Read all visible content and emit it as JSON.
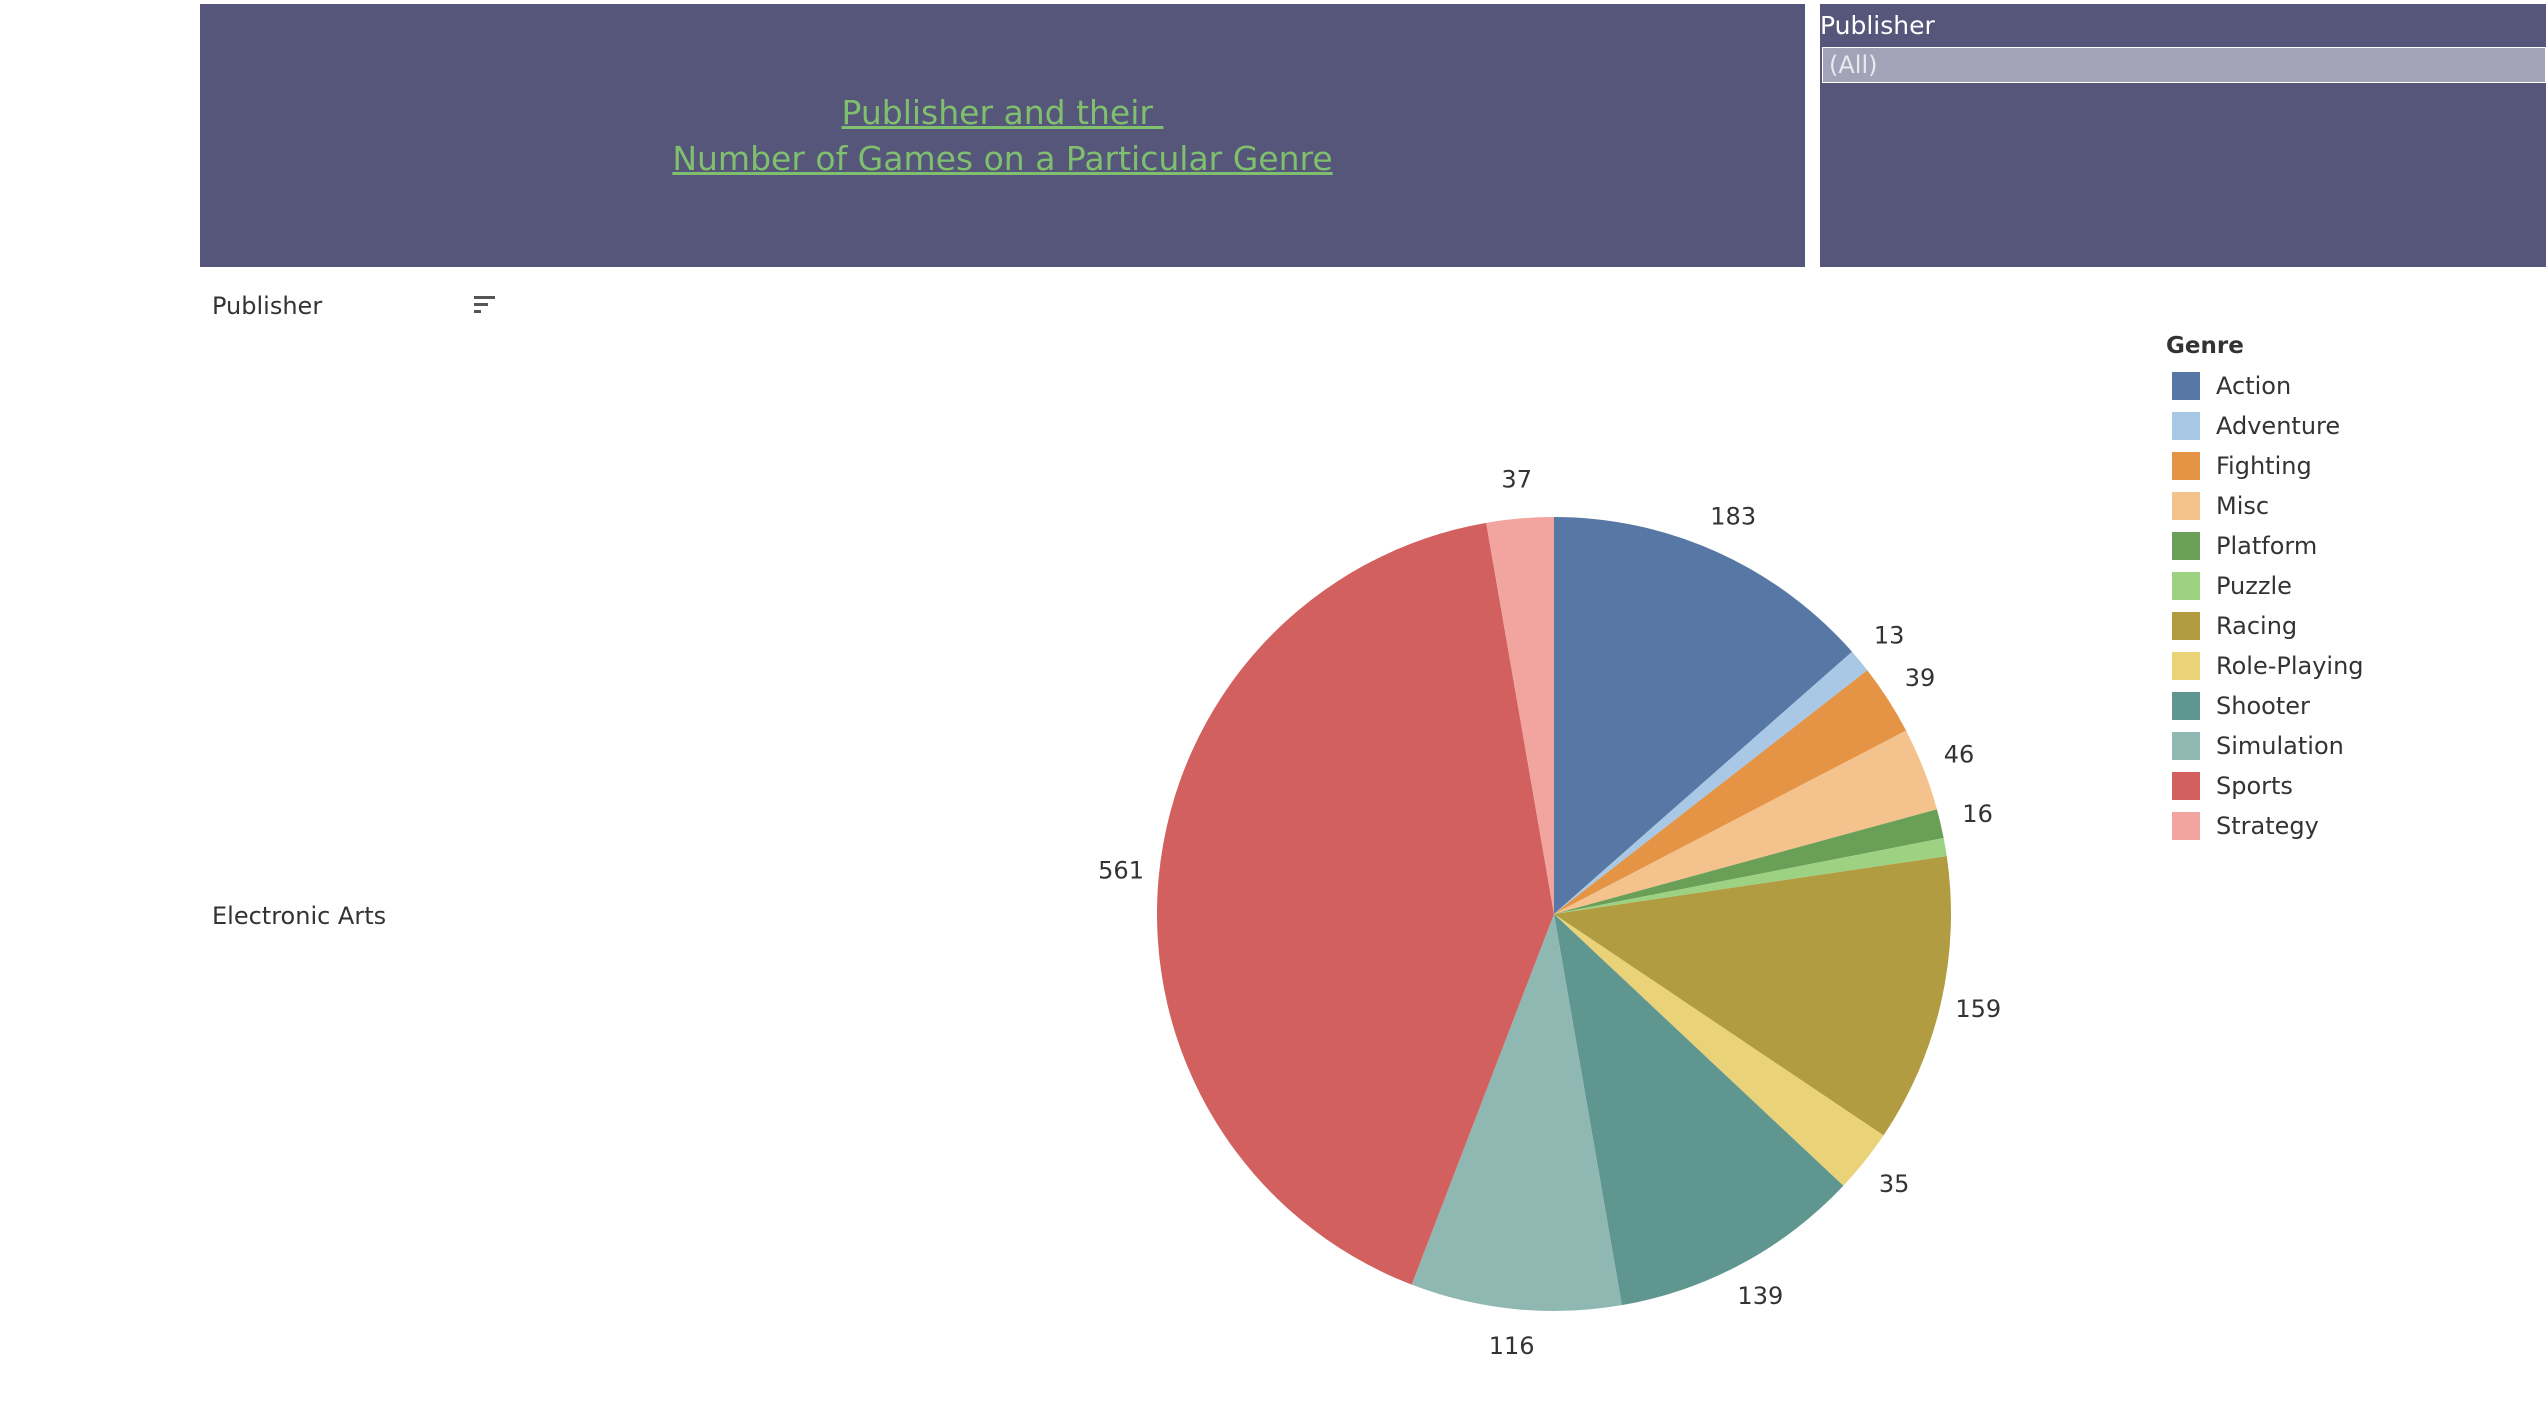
{
  "header": {
    "title_line1": "Publisher and their ",
    "title_line2": "Number of Games on a Particular Genre"
  },
  "filter": {
    "label": "Publisher",
    "selected": "(All)"
  },
  "rows": {
    "header_label": "Publisher",
    "sort_icon": "sort-descending-icon",
    "publisher": "Electronic Arts"
  },
  "legend": {
    "title": "Genre"
  },
  "colors": {
    "panel_bg": "#55567a",
    "title_text": "#7fbf6e"
  },
  "chart_data": {
    "type": "pie",
    "title": "",
    "categories": [
      "Action",
      "Adventure",
      "Fighting",
      "Misc",
      "Platform",
      "Puzzle",
      "Racing",
      "Role-Playing",
      "Shooter",
      "Simulation",
      "Sports",
      "Strategy"
    ],
    "values": [
      183,
      13,
      39,
      46,
      16,
      null,
      159,
      35,
      139,
      116,
      561,
      37
    ],
    "labels": [
      "183",
      "13",
      "39",
      "46",
      "16",
      "",
      "159",
      "35",
      "139",
      "116",
      "561",
      "37"
    ],
    "estimated_values": {
      "Puzzle": 10
    },
    "colors": [
      "#5778a4",
      "#a8c8e6",
      "#e49444",
      "#f4c28d",
      "#6a9f58",
      "#9ed283",
      "#b19c42",
      "#e9d277",
      "#5f9690",
      "#90b8b3",
      "#d1605e",
      "#f2a49f"
    ],
    "legend_position": "right"
  }
}
